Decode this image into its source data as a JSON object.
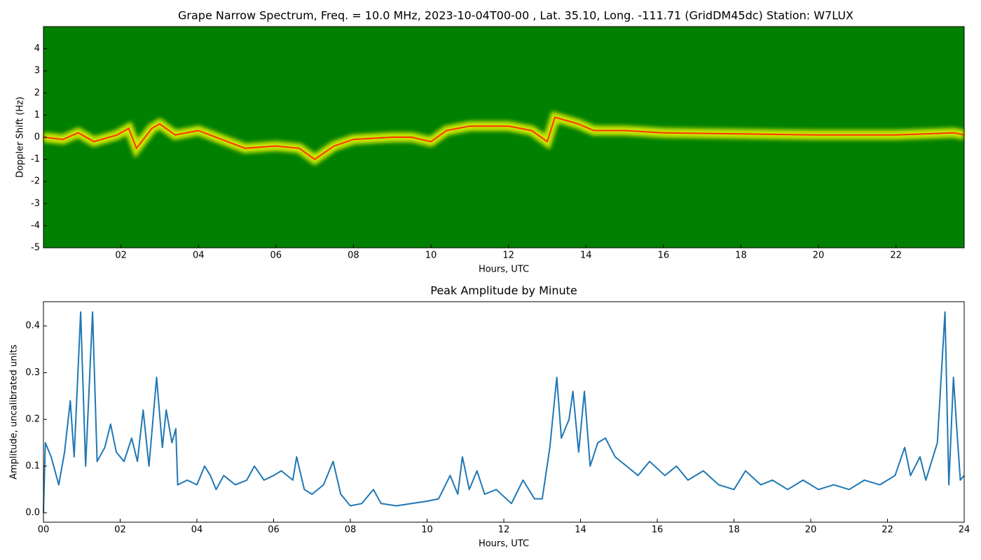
{
  "chart_data": [
    {
      "type": "heatmap",
      "title": "Grape Narrow Spectrum, Freq. = 10.0 MHz, 2023-10-04T00-00 , Lat.  35.10, Long. -111.71 (GridDM45dc) Station: W7LUX",
      "xlabel": "Hours, UTC",
      "ylabel": "Doppler Shift (Hz)",
      "colormap": [
        "#008000",
        "#ffff00",
        "#ff3300"
      ],
      "xlim": [
        0,
        23.76
      ],
      "ylim": [
        -5,
        5
      ],
      "xticks": [
        {
          "value": 2,
          "label": "02"
        },
        {
          "value": 4,
          "label": "04"
        },
        {
          "value": 6,
          "label": "06"
        },
        {
          "value": 8,
          "label": "08"
        },
        10,
        12,
        14,
        16,
        18,
        20,
        22
      ],
      "yticks": [
        -5,
        -4,
        -3,
        -2,
        -1,
        0,
        1,
        2,
        3,
        4
      ],
      "x": [
        0,
        0.5,
        0.9,
        1.3,
        1.9,
        2.2,
        2.4,
        2.8,
        3.0,
        3.4,
        4.0,
        4.6,
        5.2,
        6.0,
        6.6,
        7.0,
        7.5,
        8.0,
        9.0,
        9.5,
        10.0,
        10.4,
        11.0,
        12.0,
        12.6,
        13.0,
        13.2,
        13.8,
        14.2,
        15.0,
        16.0,
        18.0,
        20.0,
        22.0,
        23.5,
        23.76
      ],
      "values": [
        0,
        -0.1,
        0.2,
        -0.2,
        0.1,
        0.4,
        -0.5,
        0.4,
        0.6,
        0.1,
        0.3,
        -0.1,
        -0.5,
        -0.4,
        -0.5,
        -1.0,
        -0.4,
        -0.1,
        0.0,
        0.0,
        -0.2,
        0.3,
        0.5,
        0.5,
        0.3,
        -0.2,
        0.9,
        0.6,
        0.3,
        0.3,
        0.2,
        0.15,
        0.1,
        0.1,
        0.2,
        0.1
      ]
    },
    {
      "type": "line",
      "title": "Peak Amplitude by Minute",
      "xlabel": "Hours, UTC",
      "ylabel": "Amplitude, uncalibrated units",
      "color": "#1f77b4",
      "xlim": [
        0,
        24
      ],
      "ylim": [
        -0.02,
        0.452
      ],
      "xticks": [
        {
          "value": 0,
          "label": "00"
        },
        {
          "value": 2,
          "label": "02"
        },
        {
          "value": 4,
          "label": "04"
        },
        {
          "value": 6,
          "label": "06"
        },
        {
          "value": 8,
          "label": "08"
        },
        10,
        12,
        14,
        16,
        18,
        20,
        22,
        24
      ],
      "yticks": [
        {
          "value": 0,
          "label": "0.0"
        },
        0.1,
        0.2,
        0.3,
        0.4
      ],
      "x": [
        0,
        0.05,
        0.2,
        0.4,
        0.55,
        0.7,
        0.8,
        0.97,
        1.1,
        1.28,
        1.4,
        1.6,
        1.75,
        1.9,
        2.1,
        2.3,
        2.45,
        2.6,
        2.75,
        2.95,
        3.1,
        3.2,
        3.35,
        3.45,
        3.5,
        3.75,
        4.0,
        4.2,
        4.35,
        4.5,
        4.7,
        5.0,
        5.3,
        5.5,
        5.75,
        6.0,
        6.2,
        6.5,
        6.6,
        6.8,
        7.0,
        7.3,
        7.55,
        7.75,
        8.0,
        8.3,
        8.6,
        8.8,
        9.2,
        9.6,
        10.0,
        10.3,
        10.6,
        10.8,
        10.92,
        11.1,
        11.3,
        11.5,
        11.8,
        12.2,
        12.5,
        12.8,
        13.0,
        13.2,
        13.38,
        13.5,
        13.7,
        13.8,
        13.95,
        14.1,
        14.25,
        14.45,
        14.65,
        14.9,
        15.2,
        15.5,
        15.8,
        16.2,
        16.5,
        16.8,
        17.2,
        17.6,
        18.0,
        18.3,
        18.7,
        19.0,
        19.4,
        19.8,
        20.2,
        20.6,
        21.0,
        21.4,
        21.8,
        22.2,
        22.45,
        22.6,
        22.85,
        23.0,
        23.3,
        23.5,
        23.6,
        23.72,
        23.8,
        23.9,
        24.0
      ],
      "values": [
        0.0,
        0.15,
        0.12,
        0.06,
        0.13,
        0.24,
        0.12,
        0.43,
        0.1,
        0.43,
        0.11,
        0.14,
        0.19,
        0.13,
        0.11,
        0.16,
        0.11,
        0.22,
        0.1,
        0.29,
        0.14,
        0.22,
        0.15,
        0.18,
        0.06,
        0.07,
        0.06,
        0.1,
        0.08,
        0.05,
        0.08,
        0.06,
        0.07,
        0.1,
        0.07,
        0.08,
        0.09,
        0.07,
        0.12,
        0.05,
        0.04,
        0.06,
        0.11,
        0.04,
        0.015,
        0.02,
        0.05,
        0.02,
        0.015,
        0.02,
        0.025,
        0.03,
        0.08,
        0.04,
        0.12,
        0.05,
        0.09,
        0.04,
        0.05,
        0.02,
        0.07,
        0.03,
        0.03,
        0.14,
        0.29,
        0.16,
        0.2,
        0.26,
        0.13,
        0.26,
        0.1,
        0.15,
        0.16,
        0.12,
        0.1,
        0.08,
        0.11,
        0.08,
        0.1,
        0.07,
        0.09,
        0.06,
        0.05,
        0.09,
        0.06,
        0.07,
        0.05,
        0.07,
        0.05,
        0.06,
        0.05,
        0.07,
        0.06,
        0.08,
        0.14,
        0.08,
        0.12,
        0.07,
        0.15,
        0.43,
        0.06,
        0.29,
        0.19,
        0.07,
        0.08
      ]
    }
  ]
}
